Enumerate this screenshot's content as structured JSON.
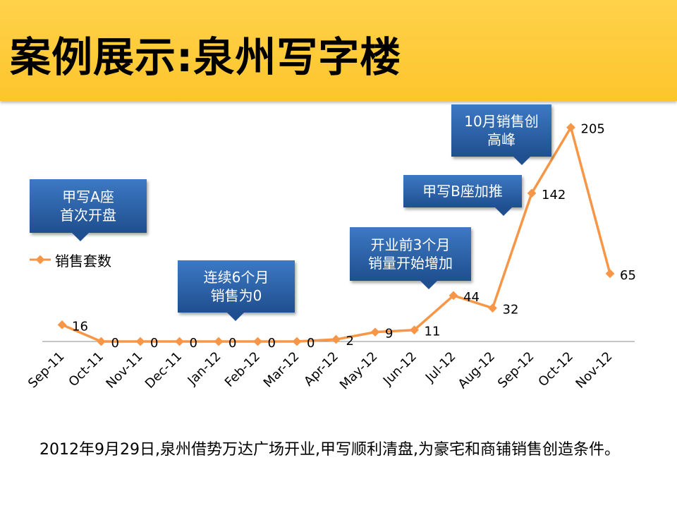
{
  "title": "案例展示:泉州写字楼",
  "caption": "2012年9月29日,泉州借势万达广场开业,甲写顺利清盘,为豪宅和商铺销售创造条件。",
  "colors": {
    "header": "#fcc52c",
    "line": "#f79646",
    "callout": "#2e63a8"
  },
  "legend": {
    "label": "销售套数",
    "position": "left"
  },
  "callouts": {
    "a": "甲写A座\n首次开盘",
    "zero": "连续6个月\n销售为0",
    "pre": "开业前3个月\n销量开始增加",
    "b": "甲写B座加推",
    "peak": "10月销售创\n高峰"
  },
  "chart_data": {
    "type": "line",
    "categories": [
      "Sep-11",
      "Oct-11",
      "Nov-11",
      "Dec-11",
      "Jan-12",
      "Feb-12",
      "Mar-12",
      "Apr-12",
      "May-12",
      "Jun-12",
      "Jul-12",
      "Aug-12",
      "Sep-12",
      "Oct-12",
      "Nov-12"
    ],
    "series": [
      {
        "name": "销售套数",
        "values": [
          16,
          0,
          0,
          0,
          0,
          0,
          0,
          2,
          9,
          11,
          44,
          32,
          142,
          205,
          65
        ]
      }
    ],
    "ylim": [
      0,
      220
    ],
    "grid": false
  }
}
